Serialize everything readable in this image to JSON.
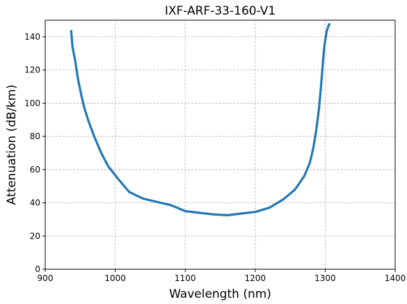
{
  "chart_data": {
    "type": "line",
    "title": "IXF-ARF-33-160-V1",
    "xlabel": "Wavelength (nm)",
    "ylabel": "Attenuation (dB/km)",
    "xlim": [
      900,
      1400
    ],
    "ylim": [
      0,
      150
    ],
    "xticks": [
      900,
      1000,
      1100,
      1200,
      1300,
      1400
    ],
    "yticks": [
      0,
      20,
      40,
      60,
      80,
      100,
      120,
      140
    ],
    "grid": true,
    "line_color": "#1f77b4",
    "series": [
      {
        "x": [
          937,
          939,
          943,
          947,
          952,
          956,
          962,
          970,
          980,
          990,
          1005,
          1020,
          1040,
          1060,
          1080,
          1100,
          1120,
          1140,
          1160,
          1180,
          1200,
          1220,
          1240,
          1257,
          1270,
          1278,
          1283,
          1287,
          1291,
          1294,
          1297,
          1299,
          1302,
          1305,
          1307
        ],
        "y": [
          144,
          134,
          125,
          114,
          104,
          97,
          89,
          80,
          70,
          62,
          54,
          46.5,
          42.5,
          40.5,
          38.5,
          35,
          34,
          33,
          32.5,
          33.5,
          34.5,
          37,
          42,
          48,
          56,
          64,
          73,
          83,
          96,
          110,
          126,
          135,
          143,
          147,
          148
        ]
      }
    ]
  }
}
